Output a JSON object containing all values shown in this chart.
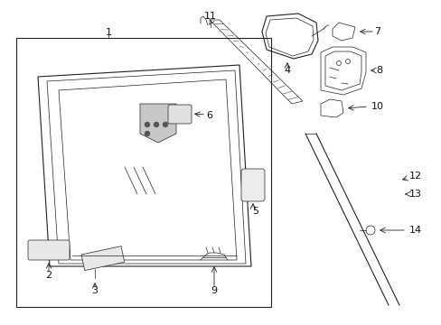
{
  "bg_color": "#ffffff",
  "line_color": "#222222",
  "label_color": "#111111",
  "fig_width": 4.89,
  "fig_height": 3.6,
  "dpi": 100
}
